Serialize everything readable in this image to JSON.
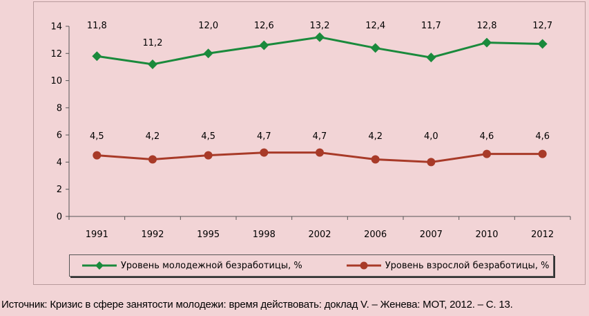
{
  "chart_data": {
    "type": "line",
    "categories": [
      "1991",
      "1992",
      "1995",
      "1998",
      "2002",
      "2006",
      "2007",
      "2010",
      "2012"
    ],
    "series": [
      {
        "name": "Уровень молодежной безработицы, %",
        "values": [
          11.8,
          11.2,
          12.0,
          12.6,
          13.2,
          12.4,
          11.7,
          12.8,
          12.7
        ],
        "labels": [
          "11,8",
          "11,2",
          "12,0",
          "12,6",
          "13,2",
          "12,4",
          "11,7",
          "12,8",
          "12,7"
        ],
        "color": "#1a8a3c",
        "marker": "diamond"
      },
      {
        "name": "Уровень взрослой безработицы, %",
        "values": [
          4.5,
          4.2,
          4.5,
          4.7,
          4.7,
          4.2,
          4.0,
          4.6,
          4.6
        ],
        "labels": [
          "4,5",
          "4,2",
          "4,5",
          "4,7",
          "4,7",
          "4,2",
          "4,0",
          "4,6",
          "4,6"
        ],
        "color": "#a83a28",
        "marker": "circle"
      }
    ],
    "yticks": [
      "0",
      "2",
      "4",
      "6",
      "8",
      "10",
      "12",
      "14"
    ],
    "ylim": [
      0,
      14
    ],
    "grid": false,
    "legend": "bottom"
  },
  "source": "Источник: Кризис в сфере занятости молодежи: время действовать: доклад V. – Женева: МОТ, 2012. – С. 13."
}
